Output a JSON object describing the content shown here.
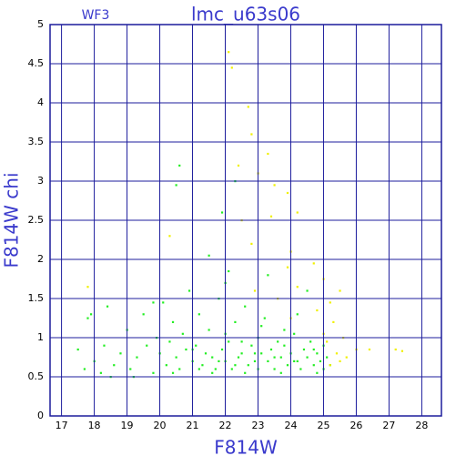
{
  "chart_data": {
    "type": "scatter",
    "title": "lmc_u63s06",
    "subtitle": "WF3",
    "x_label": "F814W",
    "y_label": "F814W chi",
    "xlim": [
      16.65,
      28.6
    ],
    "ylim": [
      0,
      5
    ],
    "xticks": [
      17,
      18,
      19,
      20,
      21,
      22,
      23,
      24,
      25,
      26,
      27,
      28
    ],
    "yticks": [
      0,
      0.5,
      1,
      1.5,
      2,
      2.5,
      3,
      3.5,
      4,
      4.5,
      5
    ],
    "grid": true,
    "grid_color": "#1c1c9c",
    "series": [
      {
        "color": "#22ee22",
        "x": [
          17.5,
          17.7,
          17.8,
          18.0,
          18.2,
          18.3,
          18.4,
          18.6,
          18.8,
          19.0,
          19.1,
          19.3,
          19.5,
          19.6,
          19.8,
          19.9,
          20.0,
          20.1,
          20.2,
          20.3,
          20.4,
          20.5,
          20.6,
          20.7,
          20.8,
          20.9,
          21.0,
          21.1,
          21.2,
          21.3,
          21.4,
          21.5,
          21.6,
          21.7,
          21.8,
          21.9,
          22.0,
          22.1,
          22.1,
          22.2,
          22.3,
          22.4,
          22.5,
          22.6,
          22.7,
          22.8,
          22.9,
          23.0,
          23.0,
          23.1,
          23.2,
          23.3,
          23.4,
          23.5,
          23.6,
          23.7,
          23.8,
          23.9,
          24.0,
          24.1,
          24.2,
          24.3,
          24.4,
          24.5,
          24.6,
          24.7,
          24.8,
          24.9,
          25.0,
          25.1,
          25.2,
          20.6,
          20.5,
          21.5,
          22.3,
          21.9,
          22.0,
          23.3,
          24.5,
          19.8,
          17.9,
          21.6,
          22.6,
          23.7,
          24.8,
          21.2,
          21.8,
          22.3,
          22.9,
          23.5,
          24.2,
          24.7,
          25.0,
          23.8,
          22.5,
          21.0,
          20.4,
          19.2,
          18.5,
          24.1,
          23.1,
          22.0
        ],
        "values": [
          0.85,
          0.6,
          1.25,
          0.7,
          0.55,
          0.9,
          1.4,
          0.65,
          0.8,
          1.1,
          0.6,
          0.75,
          1.3,
          0.9,
          0.55,
          1.0,
          0.8,
          1.45,
          0.65,
          0.95,
          1.2,
          0.75,
          0.6,
          1.05,
          0.85,
          1.6,
          0.7,
          0.9,
          1.3,
          0.65,
          0.8,
          1.1,
          0.75,
          0.6,
          1.5,
          0.85,
          0.7,
          1.85,
          0.95,
          0.6,
          1.2,
          0.75,
          0.8,
          1.4,
          0.65,
          0.9,
          0.7,
          1.0,
          0.6,
          0.8,
          1.25,
          0.7,
          0.85,
          0.6,
          0.95,
          0.75,
          1.1,
          0.65,
          0.8,
          0.7,
          1.3,
          0.6,
          0.85,
          0.75,
          0.95,
          0.65,
          0.8,
          0.7,
          0.6,
          0.75,
          0.65,
          3.2,
          2.95,
          2.05,
          3.0,
          2.6,
          1.7,
          1.8,
          1.6,
          1.45,
          1.3,
          0.55,
          0.55,
          0.55,
          0.55,
          0.6,
          0.7,
          0.65,
          0.8,
          0.75,
          0.7,
          0.85,
          0.9,
          0.9,
          0.95,
          0.85,
          0.55,
          0.5,
          0.5,
          1.05,
          1.15,
          1.05
        ]
      },
      {
        "color": "#f0f000",
        "x": [
          22.1,
          22.2,
          22.7,
          22.8,
          23.3,
          23.0,
          22.4,
          23.5,
          23.9,
          24.2,
          23.4,
          22.5,
          20.3,
          22.8,
          24.0,
          24.7,
          25.0,
          24.2,
          22.9,
          23.6,
          25.2,
          25.5,
          24.8,
          24.0,
          25.3,
          25.0,
          25.6,
          26.0,
          25.4,
          25.7,
          26.4,
          27.2,
          27.4,
          25.2,
          25.5,
          17.8,
          23.9,
          25.1
        ],
        "values": [
          4.65,
          4.45,
          3.95,
          3.6,
          3.35,
          3.1,
          3.2,
          2.95,
          2.85,
          2.6,
          2.55,
          2.5,
          2.3,
          2.2,
          2.1,
          1.95,
          1.75,
          1.65,
          1.6,
          1.5,
          1.45,
          1.6,
          1.35,
          1.25,
          1.2,
          1.05,
          1.0,
          0.85,
          0.8,
          0.75,
          0.85,
          0.85,
          0.83,
          0.65,
          0.7,
          1.65,
          1.9,
          0.95
        ]
      }
    ]
  }
}
